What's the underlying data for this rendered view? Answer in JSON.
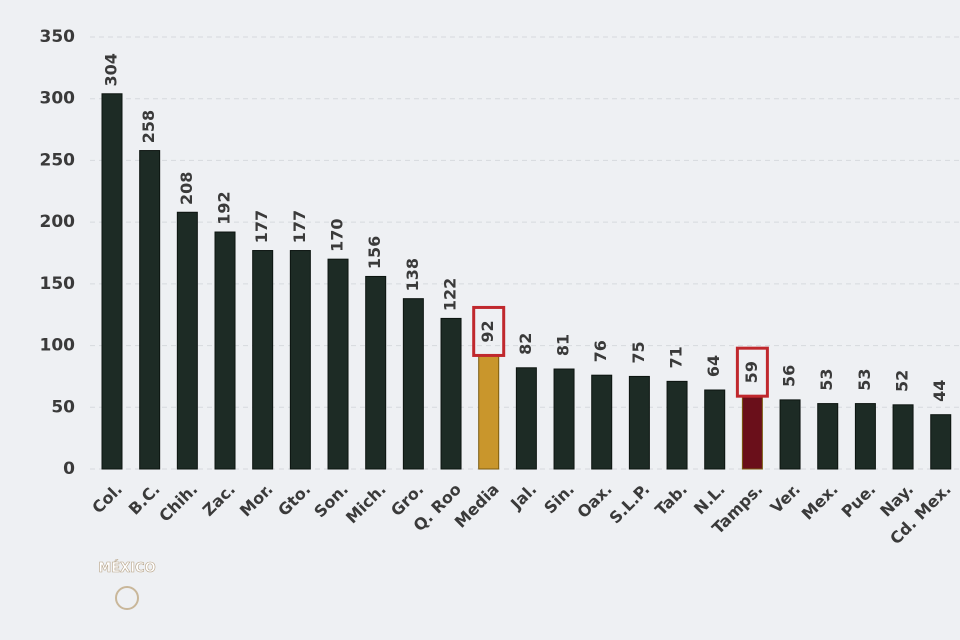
{
  "chart_data": {
    "type": "bar",
    "categories": [
      "Col.",
      "B.C.",
      "Chih.",
      "Zac.",
      "Mor.",
      "Gto.",
      "Son.",
      "Mich.",
      "Gro.",
      "Q. Roo",
      "Media",
      "Jal.",
      "Sin.",
      "Oax.",
      "S.L.P.",
      "Tab.",
      "N.L.",
      "Tamps.",
      "Ver.",
      "Mex.",
      "Pue.",
      "Nay.",
      "Cd. Mex."
    ],
    "values": [
      304,
      258,
      208,
      192,
      177,
      177,
      170,
      156,
      138,
      122,
      92,
      82,
      81,
      76,
      75,
      71,
      64,
      59,
      56,
      53,
      53,
      52,
      44
    ],
    "color": "#1d2b25",
    "colors": [
      "#1d2b25",
      "#1d2b25",
      "#1d2b25",
      "#1d2b25",
      "#1d2b25",
      "#1d2b25",
      "#1d2b25",
      "#1d2b25",
      "#1d2b25",
      "#1d2b25",
      "#c9962c",
      "#1d2b25",
      "#1d2b25",
      "#1d2b25",
      "#1d2b25",
      "#1d2b25",
      "#1d2b25",
      "#6a0f1a",
      "#1d2b25",
      "#1d2b25",
      "#1d2b25",
      "#1d2b25",
      "#1d2b25"
    ],
    "highlight_color": "#c0282d",
    "ylim": [
      0,
      350
    ],
    "yticks": [
      0,
      50,
      100,
      150,
      200,
      250,
      300,
      350
    ],
    "grid": true,
    "logo_text": "MÉXICO"
  }
}
